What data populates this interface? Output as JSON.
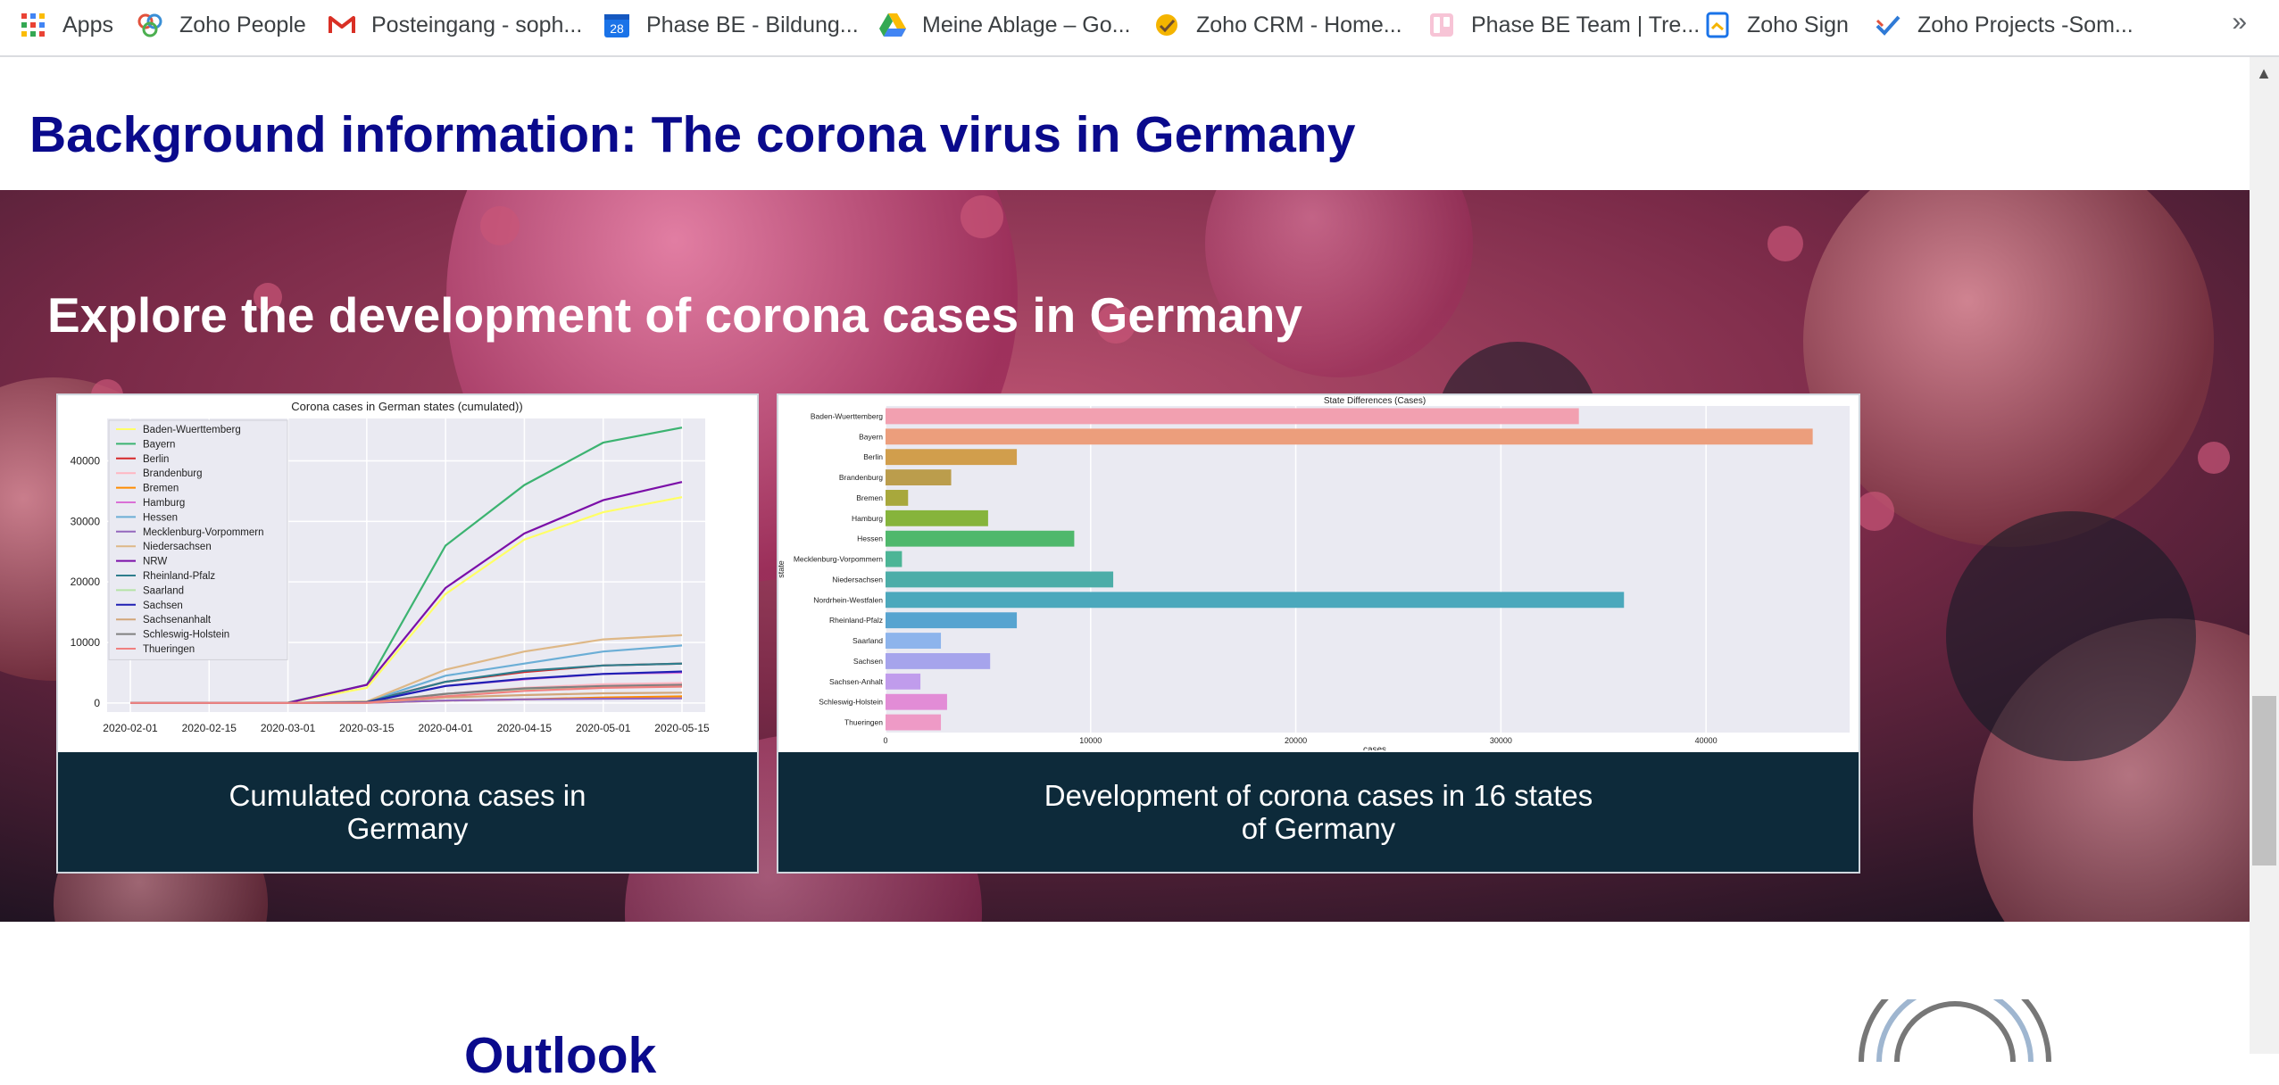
{
  "bookmarks": [
    {
      "label": "Apps",
      "icon": "apps-grid-icon"
    },
    {
      "label": "Zoho People",
      "icon": "zoho-people-icon"
    },
    {
      "label": "Posteingang - soph...",
      "icon": "gmail-icon"
    },
    {
      "label": "Phase BE - Bildung...",
      "icon": "calendar-icon",
      "badge": "28"
    },
    {
      "label": "Meine Ablage – Go...",
      "icon": "google-drive-icon"
    },
    {
      "label": "Zoho CRM - Home...",
      "icon": "zoho-crm-icon"
    },
    {
      "label": "Phase BE Team | Tre...",
      "icon": "trello-icon"
    },
    {
      "label": "Zoho Sign",
      "icon": "zoho-sign-icon"
    },
    {
      "label": "Zoho Projects -Som...",
      "icon": "zoho-projects-icon"
    }
  ],
  "more_label": "»",
  "page": {
    "section_title": "Background information: The corona virus in Germany",
    "hero_title": "Explore the development of corona cases in Germany",
    "next_section_title": "Outlook"
  },
  "cards": [
    {
      "caption_line1": "Cumulated corona cases in",
      "caption_line2": "Germany"
    },
    {
      "caption_line1": "Development of corona cases in 16 states",
      "caption_line2": "of Germany"
    }
  ],
  "chart_data": [
    {
      "type": "line",
      "title": "Corona cases in German states (cumulated))",
      "xlabel": "",
      "ylabel": "",
      "x": [
        "2020-02-01",
        "2020-02-15",
        "2020-03-01",
        "2020-03-15",
        "2020-04-01",
        "2020-04-15",
        "2020-05-01",
        "2020-05-15"
      ],
      "x_ticks": [
        "2020-02-01",
        "2020-02-15",
        "2020-03-01",
        "2020-03-15",
        "2020-04-01",
        "2020-04-15",
        "2020-05-01",
        "2020-05-15"
      ],
      "y_ticks": [
        0,
        10000,
        20000,
        30000,
        40000
      ],
      "ylim": [
        -1500,
        47000
      ],
      "legend": "top-left",
      "grid": true,
      "series": [
        {
          "name": "Baden-Wuerttemberg",
          "color": "#ffff66",
          "values": [
            0,
            0,
            50,
            2500,
            18000,
            27000,
            31500,
            34000
          ]
        },
        {
          "name": "Bayern",
          "color": "#3cb371",
          "values": [
            0,
            10,
            50,
            3000,
            26000,
            36000,
            43000,
            45500
          ]
        },
        {
          "name": "Berlin",
          "color": "#d62728",
          "values": [
            0,
            0,
            0,
            200,
            3500,
            5100,
            6200,
            6500
          ]
        },
        {
          "name": "Brandenburg",
          "color": "#ffb6c1",
          "values": [
            0,
            0,
            0,
            30,
            1500,
            2500,
            3100,
            3300
          ]
        },
        {
          "name": "Bremen",
          "color": "#ff8c00",
          "values": [
            0,
            0,
            0,
            20,
            400,
            600,
            900,
            1100
          ]
        },
        {
          "name": "Hamburg",
          "color": "#da70d6",
          "values": [
            0,
            0,
            0,
            200,
            2800,
            3900,
            4800,
            5000
          ]
        },
        {
          "name": "Hessen",
          "color": "#6baed6",
          "values": [
            0,
            0,
            0,
            200,
            4500,
            6500,
            8500,
            9500
          ]
        },
        {
          "name": "Mecklenburg-Vorpommern",
          "color": "#9467bd",
          "values": [
            0,
            0,
            0,
            20,
            400,
            600,
            700,
            750
          ]
        },
        {
          "name": "Niedersachsen",
          "color": "#deb887",
          "values": [
            0,
            0,
            0,
            250,
            5500,
            8500,
            10500,
            11200
          ]
        },
        {
          "name": "NRW",
          "color": "#7b0fa8",
          "values": [
            0,
            0,
            20,
            3000,
            19000,
            28000,
            33500,
            36500
          ]
        },
        {
          "name": "Rheinland-Pfalz",
          "color": "#2e7d8c",
          "values": [
            0,
            0,
            0,
            150,
            3500,
            5300,
            6200,
            6500
          ]
        },
        {
          "name": "Saarland",
          "color": "#b5e3a6",
          "values": [
            0,
            0,
            0,
            80,
            1500,
            2300,
            2600,
            2700
          ]
        },
        {
          "name": "Sachsen",
          "color": "#1f1fb4",
          "values": [
            0,
            0,
            0,
            100,
            2800,
            4000,
            4800,
            5200
          ]
        },
        {
          "name": "Sachsenanhalt",
          "color": "#d2a679",
          "values": [
            0,
            0,
            0,
            40,
            900,
            1300,
            1600,
            1700
          ]
        },
        {
          "name": "Schleswig-Holstein",
          "color": "#808080",
          "values": [
            0,
            0,
            0,
            60,
            1500,
            2400,
            2800,
            3000
          ]
        },
        {
          "name": "Thueringen",
          "color": "#f08080",
          "values": [
            0,
            0,
            0,
            30,
            1100,
            2000,
            2500,
            2700
          ]
        }
      ]
    },
    {
      "type": "bar",
      "orientation": "horizontal",
      "title": "State Differences (Cases)",
      "xlabel": "cases",
      "ylabel": "state",
      "xlim": [
        0,
        47000
      ],
      "x_ticks": [
        0,
        10000,
        20000,
        30000,
        40000
      ],
      "grid": true,
      "categories": [
        "Baden-Wuerttemberg",
        "Bayern",
        "Berlin",
        "Brandenburg",
        "Bremen",
        "Hamburg",
        "Hessen",
        "Mecklenburg-Vorpommern",
        "Niedersachsen",
        "Nordrhein-Westfalen",
        "Rheinland-Pfalz",
        "Saarland",
        "Sachsen",
        "Sachsen-Anhalt",
        "Schleswig-Holstein",
        "Thueringen"
      ],
      "values": [
        33800,
        45200,
        6400,
        3200,
        1100,
        5000,
        9200,
        800,
        11100,
        36000,
        6400,
        2700,
        5100,
        1700,
        3000,
        2700
      ],
      "colors": [
        "#f2a0b0",
        "#ec9e7c",
        "#d19e4c",
        "#bb9d4c",
        "#a8a83c",
        "#86b43c",
        "#4fb86c",
        "#4cb596",
        "#4cada8",
        "#4ca8bc",
        "#57a4d0",
        "#8db4ec",
        "#a6a4ec",
        "#c09cec",
        "#e28cd6",
        "#ee9ac6"
      ]
    }
  ]
}
